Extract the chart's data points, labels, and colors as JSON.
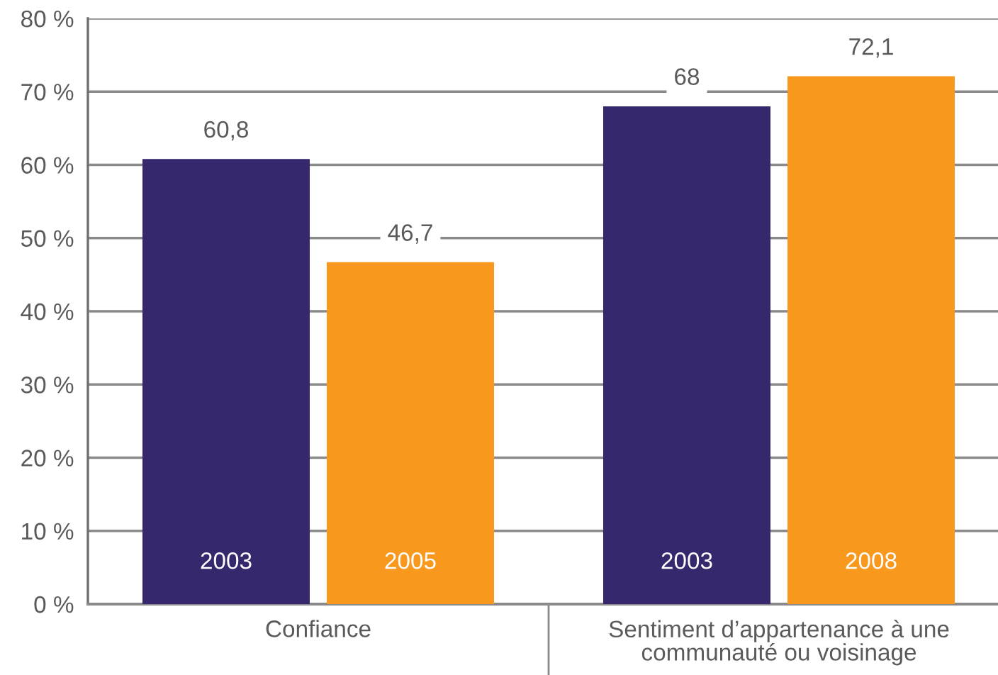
{
  "chart_data": {
    "type": "bar",
    "categories": [
      "Confiance",
      "Sentiment d’appartenance à une communauté ou voisinage"
    ],
    "series": [
      {
        "color": "#37286d",
        "values": [
          60.8,
          68
        ],
        "value_labels": [
          "60,8",
          "68"
        ]
      },
      {
        "color": "#f8981d",
        "values": [
          46.7,
          72.1
        ],
        "value_labels": [
          "46,7",
          "72,1"
        ]
      }
    ],
    "ylim": [
      0,
      80
    ],
    "yticks": [
      {
        "value": 0,
        "label": "0 %"
      },
      {
        "value": 10,
        "label": "10 %"
      },
      {
        "value": 20,
        "label": "20 %"
      },
      {
        "value": 30,
        "label": "30 %"
      },
      {
        "value": 40,
        "label": "40 %"
      },
      {
        "value": 50,
        "label": "50 %"
      },
      {
        "value": 60,
        "label": "60 %"
      },
      {
        "value": 70,
        "label": "70 %"
      },
      {
        "value": 80,
        "label": "80 %"
      }
    ],
    "grid": "y",
    "annotations": [
      "2003",
      "2005",
      "2003",
      "2008"
    ]
  }
}
